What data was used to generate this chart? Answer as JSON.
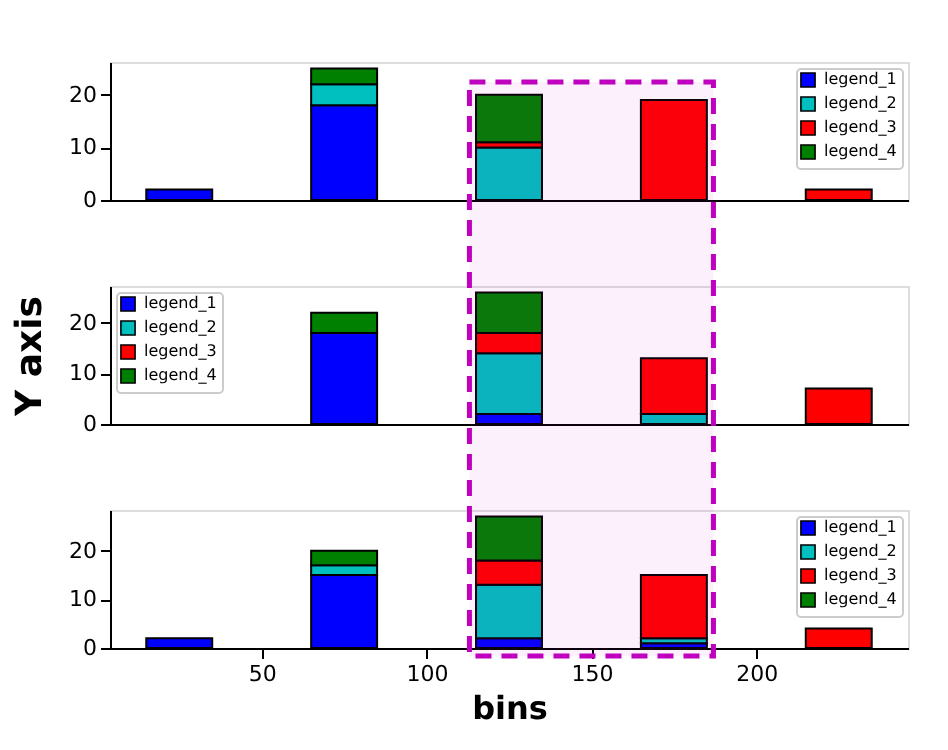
{
  "chart_data": [
    {
      "type": "bar",
      "stacked": true,
      "categories": [
        null,
        null,
        null,
        null,
        null
      ],
      "ylim": [
        0,
        26.25
      ],
      "yticks": [
        0,
        10,
        20
      ],
      "tick_labels": "y",
      "legend": "top right",
      "grid": false,
      "series": [
        {
          "name": "legend_1",
          "color": "#0000ff",
          "values": [
            2,
            18,
            null,
            null,
            null
          ]
        },
        {
          "name": "legend_2",
          "color": "#00bfbf",
          "values": [
            null,
            4,
            10,
            null,
            null
          ]
        },
        {
          "name": "legend_3",
          "color": "#ff0000",
          "values": [
            null,
            null,
            1,
            19,
            2
          ]
        },
        {
          "name": "legend_4",
          "color": "#008000",
          "values": [
            null,
            3,
            9,
            null,
            null
          ]
        }
      ]
    },
    {
      "type": "bar",
      "stacked": true,
      "categories": [
        null,
        null,
        null,
        null,
        null
      ],
      "ylim": [
        0,
        27.3
      ],
      "yticks": [
        0,
        10,
        20
      ],
      "tick_labels": "y",
      "legend": "top left",
      "grid": false,
      "ylabel": "Y axis",
      "series": [
        {
          "name": "legend_1",
          "color": "#0000ff",
          "values": [
            null,
            18,
            2,
            null,
            null
          ]
        },
        {
          "name": "legend_2",
          "color": "#00bfbf",
          "values": [
            null,
            null,
            12,
            2,
            null
          ]
        },
        {
          "name": "legend_3",
          "color": "#ff0000",
          "values": [
            null,
            null,
            4,
            11,
            7
          ]
        },
        {
          "name": "legend_4",
          "color": "#008000",
          "values": [
            null,
            4,
            8,
            null,
            null
          ]
        }
      ]
    },
    {
      "type": "bar",
      "stacked": true,
      "x": [
        25,
        75,
        125,
        175,
        225
      ],
      "xlim": [
        4,
        246
      ],
      "xticks": [
        50,
        100,
        150,
        200
      ],
      "ylim": [
        0,
        28.35
      ],
      "yticks": [
        0,
        10,
        20
      ],
      "legend": "top right",
      "grid": false,
      "xlabel": "bins",
      "series": [
        {
          "name": "legend_1",
          "color": "#0000ff",
          "values": [
            2,
            15,
            2,
            1,
            null
          ]
        },
        {
          "name": "legend_2",
          "color": "#00bfbf",
          "values": [
            null,
            2,
            11,
            1,
            null
          ]
        },
        {
          "name": "legend_3",
          "color": "#ff0000",
          "values": [
            null,
            null,
            5,
            13,
            4
          ]
        },
        {
          "name": "legend_4",
          "color": "#008000",
          "values": [
            null,
            3,
            9,
            null,
            null
          ]
        }
      ],
      "bands": [
        {
          "axis": "x",
          "from": 113,
          "to": 187,
          "color": "#bf00bf"
        }
      ]
    }
  ]
}
